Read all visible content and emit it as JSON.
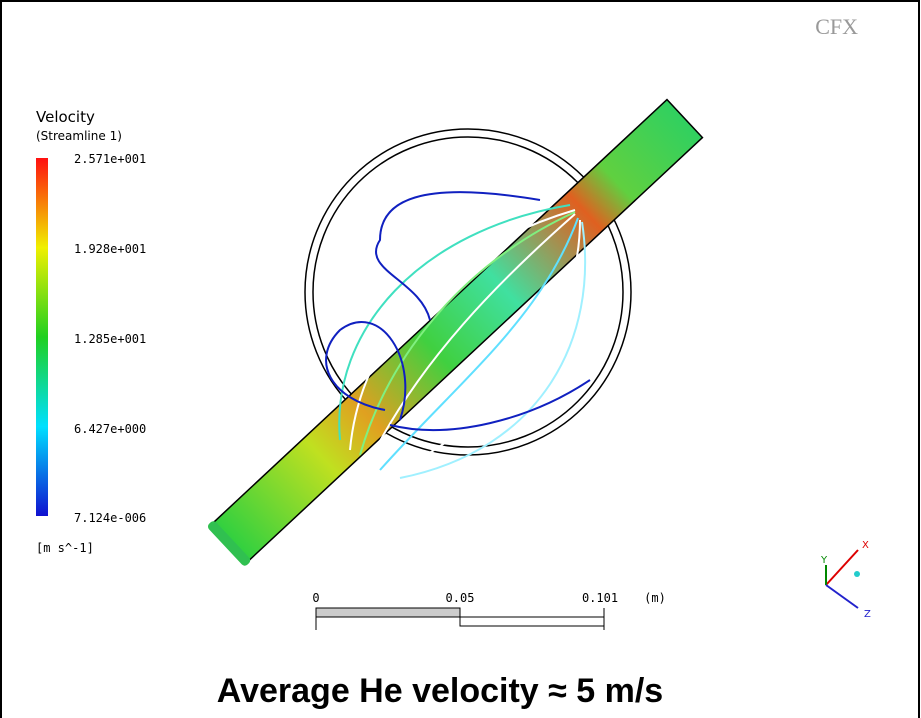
{
  "logo": "CFX",
  "legend": {
    "title": "Velocity",
    "subtitle": "(Streamline 1)",
    "labels": [
      "2.571e+001",
      "1.928e+001",
      "1.285e+001",
      "6.427e+000",
      "7.124e-006"
    ],
    "units": "[m s^-1]"
  },
  "scale_bar": {
    "labels": [
      "0",
      "0.05",
      "0.101"
    ],
    "unit": "(m)"
  },
  "triad": {
    "x": "X",
    "y": "Y",
    "z": "Z"
  },
  "caption": "Average He velocity ≈ 5 m/s"
}
